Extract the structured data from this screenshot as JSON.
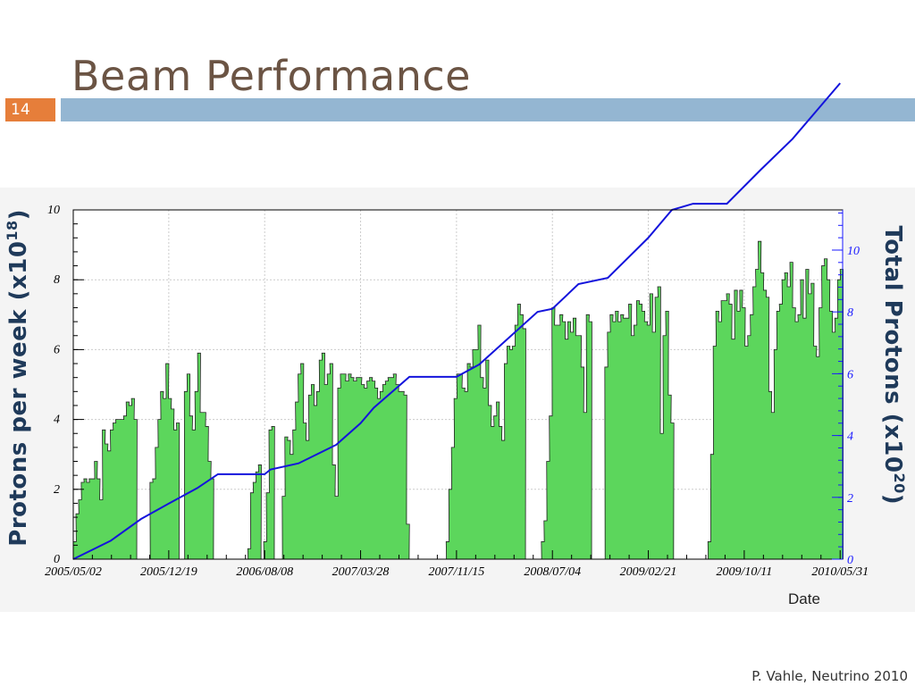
{
  "slide": {
    "title": "Beam Performance",
    "number": "14",
    "footer": "P. Vahle, Neutrino 2010",
    "accent_color": "#e67e3a",
    "bar_color": "#94b6d2",
    "title_color": "#6b5444"
  },
  "chart_data": {
    "type": "bar",
    "title": "",
    "xlabel": "Date",
    "ylabel_left": "Protons per week (x10",
    "ylabel_left_exp": "18",
    "ylabel_right": "Total Protons (x10",
    "ylabel_right_exp": "20",
    "x_tick_labels": [
      "2005/05/02",
      "2005/12/19",
      "2006/08/08",
      "2007/03/28",
      "2007/11/15",
      "2008/07/04",
      "2009/02/21",
      "2009/10/11",
      "2010/05/31"
    ],
    "left_axis": {
      "range": [
        0,
        10
      ],
      "ticks": [
        0,
        2,
        4,
        6,
        8,
        10
      ]
    },
    "right_axis": {
      "range": [
        0,
        11.3
      ],
      "ticks": [
        0,
        2,
        4,
        6,
        8,
        10
      ],
      "color": "#1a1aff"
    },
    "grid": true,
    "bar_color": "#5cd65c",
    "line_color": "#1414dc",
    "weekly_series_name": "",
    "cumulative_series_name": "",
    "weeks_start": "2005/05/02",
    "weekly_values": [
      0.5,
      1.3,
      1.7,
      2.2,
      2.3,
      2.2,
      2.3,
      2.3,
      2.8,
      2.3,
      1.7,
      3.7,
      3.3,
      3.1,
      3.7,
      3.9,
      4.0,
      4.0,
      4.0,
      4.1,
      4.5,
      4.4,
      4.6,
      4.0,
      0,
      0,
      0,
      0,
      0,
      2.2,
      2.3,
      3.2,
      4.0,
      4.8,
      4.6,
      5.6,
      4.6,
      4.3,
      3.7,
      3.9,
      0,
      0,
      4.8,
      5.3,
      4.1,
      3.7,
      4.8,
      5.9,
      4.2,
      4.2,
      3.8,
      2.8,
      2.3,
      0,
      0,
      0,
      0,
      0,
      0,
      0,
      0,
      0,
      0,
      0,
      0,
      0,
      0.3,
      1.9,
      2.2,
      2.5,
      2.7,
      0,
      0.5,
      1.9,
      3.7,
      3.8,
      0,
      0,
      0,
      1.8,
      3.5,
      3.4,
      3.0,
      3.7,
      4.5,
      5.3,
      5.6,
      3.9,
      3.4,
      4.7,
      5.0,
      4.4,
      4.8,
      5.7,
      5.9,
      5.0,
      5.3,
      5.6,
      2.7,
      1.8,
      4.9,
      5.3,
      5.3,
      5.1,
      5.3,
      5.2,
      5.1,
      5.2,
      5.2,
      5.0,
      4.9,
      5.1,
      5.2,
      5.1,
      4.9,
      4.6,
      4.8,
      5.0,
      5.1,
      5.2,
      5.2,
      5.3,
      5.0,
      4.8,
      4.8,
      4.7,
      1.0,
      0,
      0,
      0,
      0,
      0,
      0,
      0,
      0,
      0,
      0,
      0,
      0,
      0,
      0,
      0.5,
      2.0,
      3.2,
      4.6,
      5.3,
      5.3,
      4.9,
      4.8,
      5.6,
      5.5,
      6.0,
      6.0,
      6.7,
      5.2,
      4.9,
      5.7,
      4.4,
      3.8,
      4.1,
      4.5,
      3.8,
      3.4,
      5.6,
      6.1,
      6.0,
      6.1,
      6.7,
      7.3,
      7.0,
      6.6,
      0,
      0,
      0,
      0,
      0,
      0,
      0.5,
      1.1,
      2.8,
      4.1,
      7.2,
      6.7,
      6.7,
      7.0,
      6.8,
      6.3,
      6.8,
      6.5,
      6.9,
      6.4,
      6.4,
      5.5,
      4.2,
      7.0,
      6.8,
      0,
      0,
      0,
      0,
      0,
      5.5,
      6.5,
      7.0,
      6.8,
      7.1,
      6.8,
      7.0,
      6.9,
      6.9,
      7.3,
      6.4,
      6.7,
      7.4,
      7.3,
      7.1,
      6.8,
      6.7,
      7.6,
      6.5,
      7.5,
      7.8,
      3.6,
      6.4,
      7.1,
      4.7,
      3.9,
      0,
      0,
      0,
      0,
      0,
      0,
      0,
      0,
      0,
      0,
      0,
      0,
      0,
      0.5,
      3.0,
      6.1,
      7.1,
      6.8,
      7.4,
      7.4,
      7.6,
      7.3,
      6.3,
      7.7,
      7.1,
      7.7,
      7.2,
      6.1,
      6.4,
      7.0,
      7.8,
      8.3,
      9.1,
      8.2,
      7.7,
      7.5,
      4.8,
      4.2,
      6.0,
      7.1,
      7.3,
      8.0,
      8.2,
      7.8,
      8.5,
      7.2,
      6.8,
      7.0,
      8.0,
      6.9,
      8.3,
      7.6,
      7.9,
      6.1,
      5.8,
      7.2,
      8.4,
      8.6,
      8.0,
      7.1,
      6.5,
      6.9,
      8.0,
      8.3
    ],
    "cumulative_points": [
      [
        "2005/05/02",
        0
      ],
      [
        "2005/08/01",
        0.6
      ],
      [
        "2005/10/13",
        1.3
      ],
      [
        "2005/12/19",
        1.8
      ],
      [
        "2006/02/26",
        2.3
      ],
      [
        "2006/04/17",
        2.75
      ],
      [
        "2006/08/08",
        2.75
      ],
      [
        "2006/08/22",
        2.9
      ],
      [
        "2006/10/29",
        3.1
      ],
      [
        "2007/01/28",
        3.7
      ],
      [
        "2007/03/28",
        4.4
      ],
      [
        "2007/04/29",
        4.9
      ],
      [
        "2007/07/24",
        5.9
      ],
      [
        "2007/09/05",
        5.9
      ],
      [
        "2007/11/15",
        5.9
      ],
      [
        "2008/01/09",
        6.3
      ],
      [
        "2008/04/01",
        7.3
      ],
      [
        "2008/05/29",
        8.0
      ],
      [
        "2008/07/04",
        8.1
      ],
      [
        "2008/09/05",
        8.9
      ],
      [
        "2008/11/15",
        9.1
      ],
      [
        "2009/02/21",
        10.4
      ],
      [
        "2009/04/19",
        11.3
      ],
      [
        "2009/06/09",
        11.5
      ],
      [
        "2009/08/30",
        11.5
      ],
      [
        "2009/11/20",
        12.6
      ],
      [
        "2010/02/05",
        13.6
      ],
      [
        "2010/05/31",
        15.4
      ]
    ]
  }
}
